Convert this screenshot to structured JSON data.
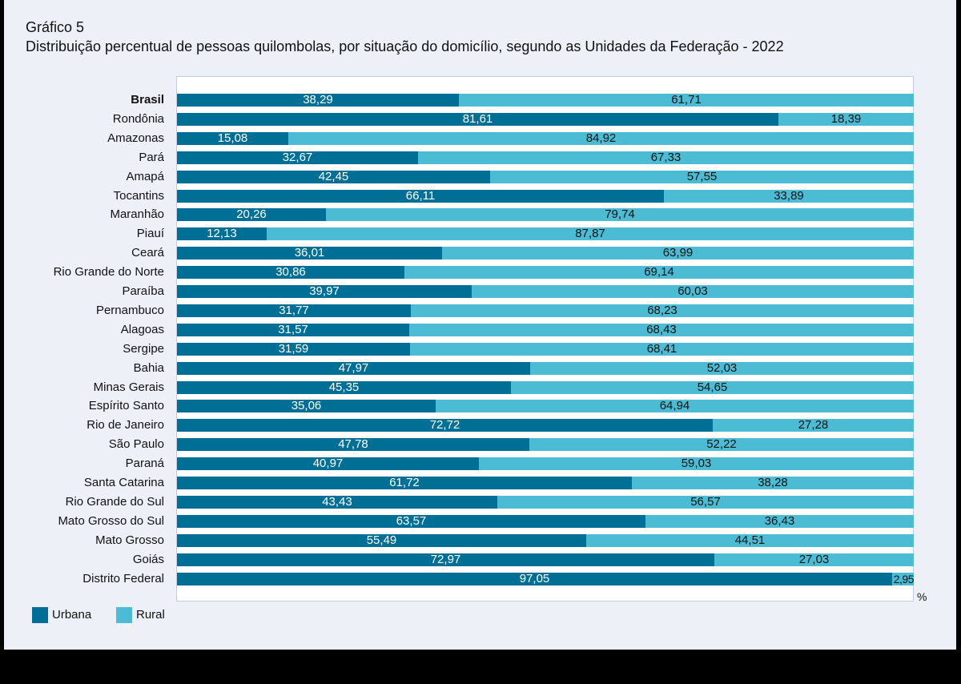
{
  "header": {
    "chart_number": "Gráfico 5",
    "title": "Distribuição percentual de pessoas quilombolas, por situação do domicílio, segundo as Unidades da Federação - 2022"
  },
  "colors": {
    "urbana": "#006f96",
    "rural": "#4bbcd3"
  },
  "chart_data": {
    "type": "bar",
    "orientation": "horizontal",
    "stacked": true,
    "title": "Distribuição percentual de pessoas quilombolas, por situação do domicílio, segundo as Unidades da Federação - 2022",
    "unit": "%",
    "xlim": [
      0,
      100
    ],
    "grid": false,
    "legend_position": "bottom-left",
    "categories": [
      "Brasil",
      "Rondônia",
      "Amazonas",
      "Pará",
      "Amapá",
      "Tocantins",
      "Maranhão",
      "Piauí",
      "Ceará",
      "Rio Grande do Norte",
      "Paraíba",
      "Pernambuco",
      "Alagoas",
      "Sergipe",
      "Bahia",
      "Minas Gerais",
      "Espírito Santo",
      "Rio de Janeiro",
      "São Paulo",
      "Paraná",
      "Santa Catarina",
      "Rio Grande do Sul",
      "Mato Grosso do Sul",
      "Mato Grosso",
      "Goiás",
      "Distrito Federal"
    ],
    "series": [
      {
        "name": "Urbana",
        "values": [
          38.29,
          81.61,
          15.08,
          32.67,
          42.45,
          66.11,
          20.26,
          12.13,
          36.01,
          30.86,
          39.97,
          31.77,
          31.57,
          31.59,
          47.97,
          45.35,
          35.06,
          72.72,
          47.78,
          40.97,
          61.72,
          43.43,
          63.57,
          55.49,
          72.97,
          97.05
        ],
        "labels": [
          "38,29",
          "81,61",
          "15,08",
          "32,67",
          "42,45",
          "66,11",
          "20,26",
          "12,13",
          "36,01",
          "30,86",
          "39,97",
          "31,77",
          "31,57",
          "31,59",
          "47,97",
          "45,35",
          "35,06",
          "72,72",
          "47,78",
          "40,97",
          "61,72",
          "43,43",
          "63,57",
          "55,49",
          "72,97",
          "97,05"
        ]
      },
      {
        "name": "Rural",
        "values": [
          61.71,
          18.39,
          84.92,
          67.33,
          57.55,
          33.89,
          79.74,
          87.87,
          63.99,
          69.14,
          60.03,
          68.23,
          68.43,
          68.41,
          52.03,
          54.65,
          64.94,
          27.28,
          52.22,
          59.03,
          38.28,
          56.57,
          36.43,
          44.51,
          27.03,
          2.95
        ],
        "labels": [
          "61,71",
          "18,39",
          "84,92",
          "67,33",
          "57,55",
          "33,89",
          "79,74",
          "87,87",
          "63,99",
          "69,14",
          "60,03",
          "68,23",
          "68,43",
          "68,41",
          "52,03",
          "54,65",
          "64,94",
          "27,28",
          "52,22",
          "59,03",
          "38,28",
          "56,57",
          "36,43",
          "44,51",
          "27,03",
          "2,95"
        ]
      }
    ]
  }
}
